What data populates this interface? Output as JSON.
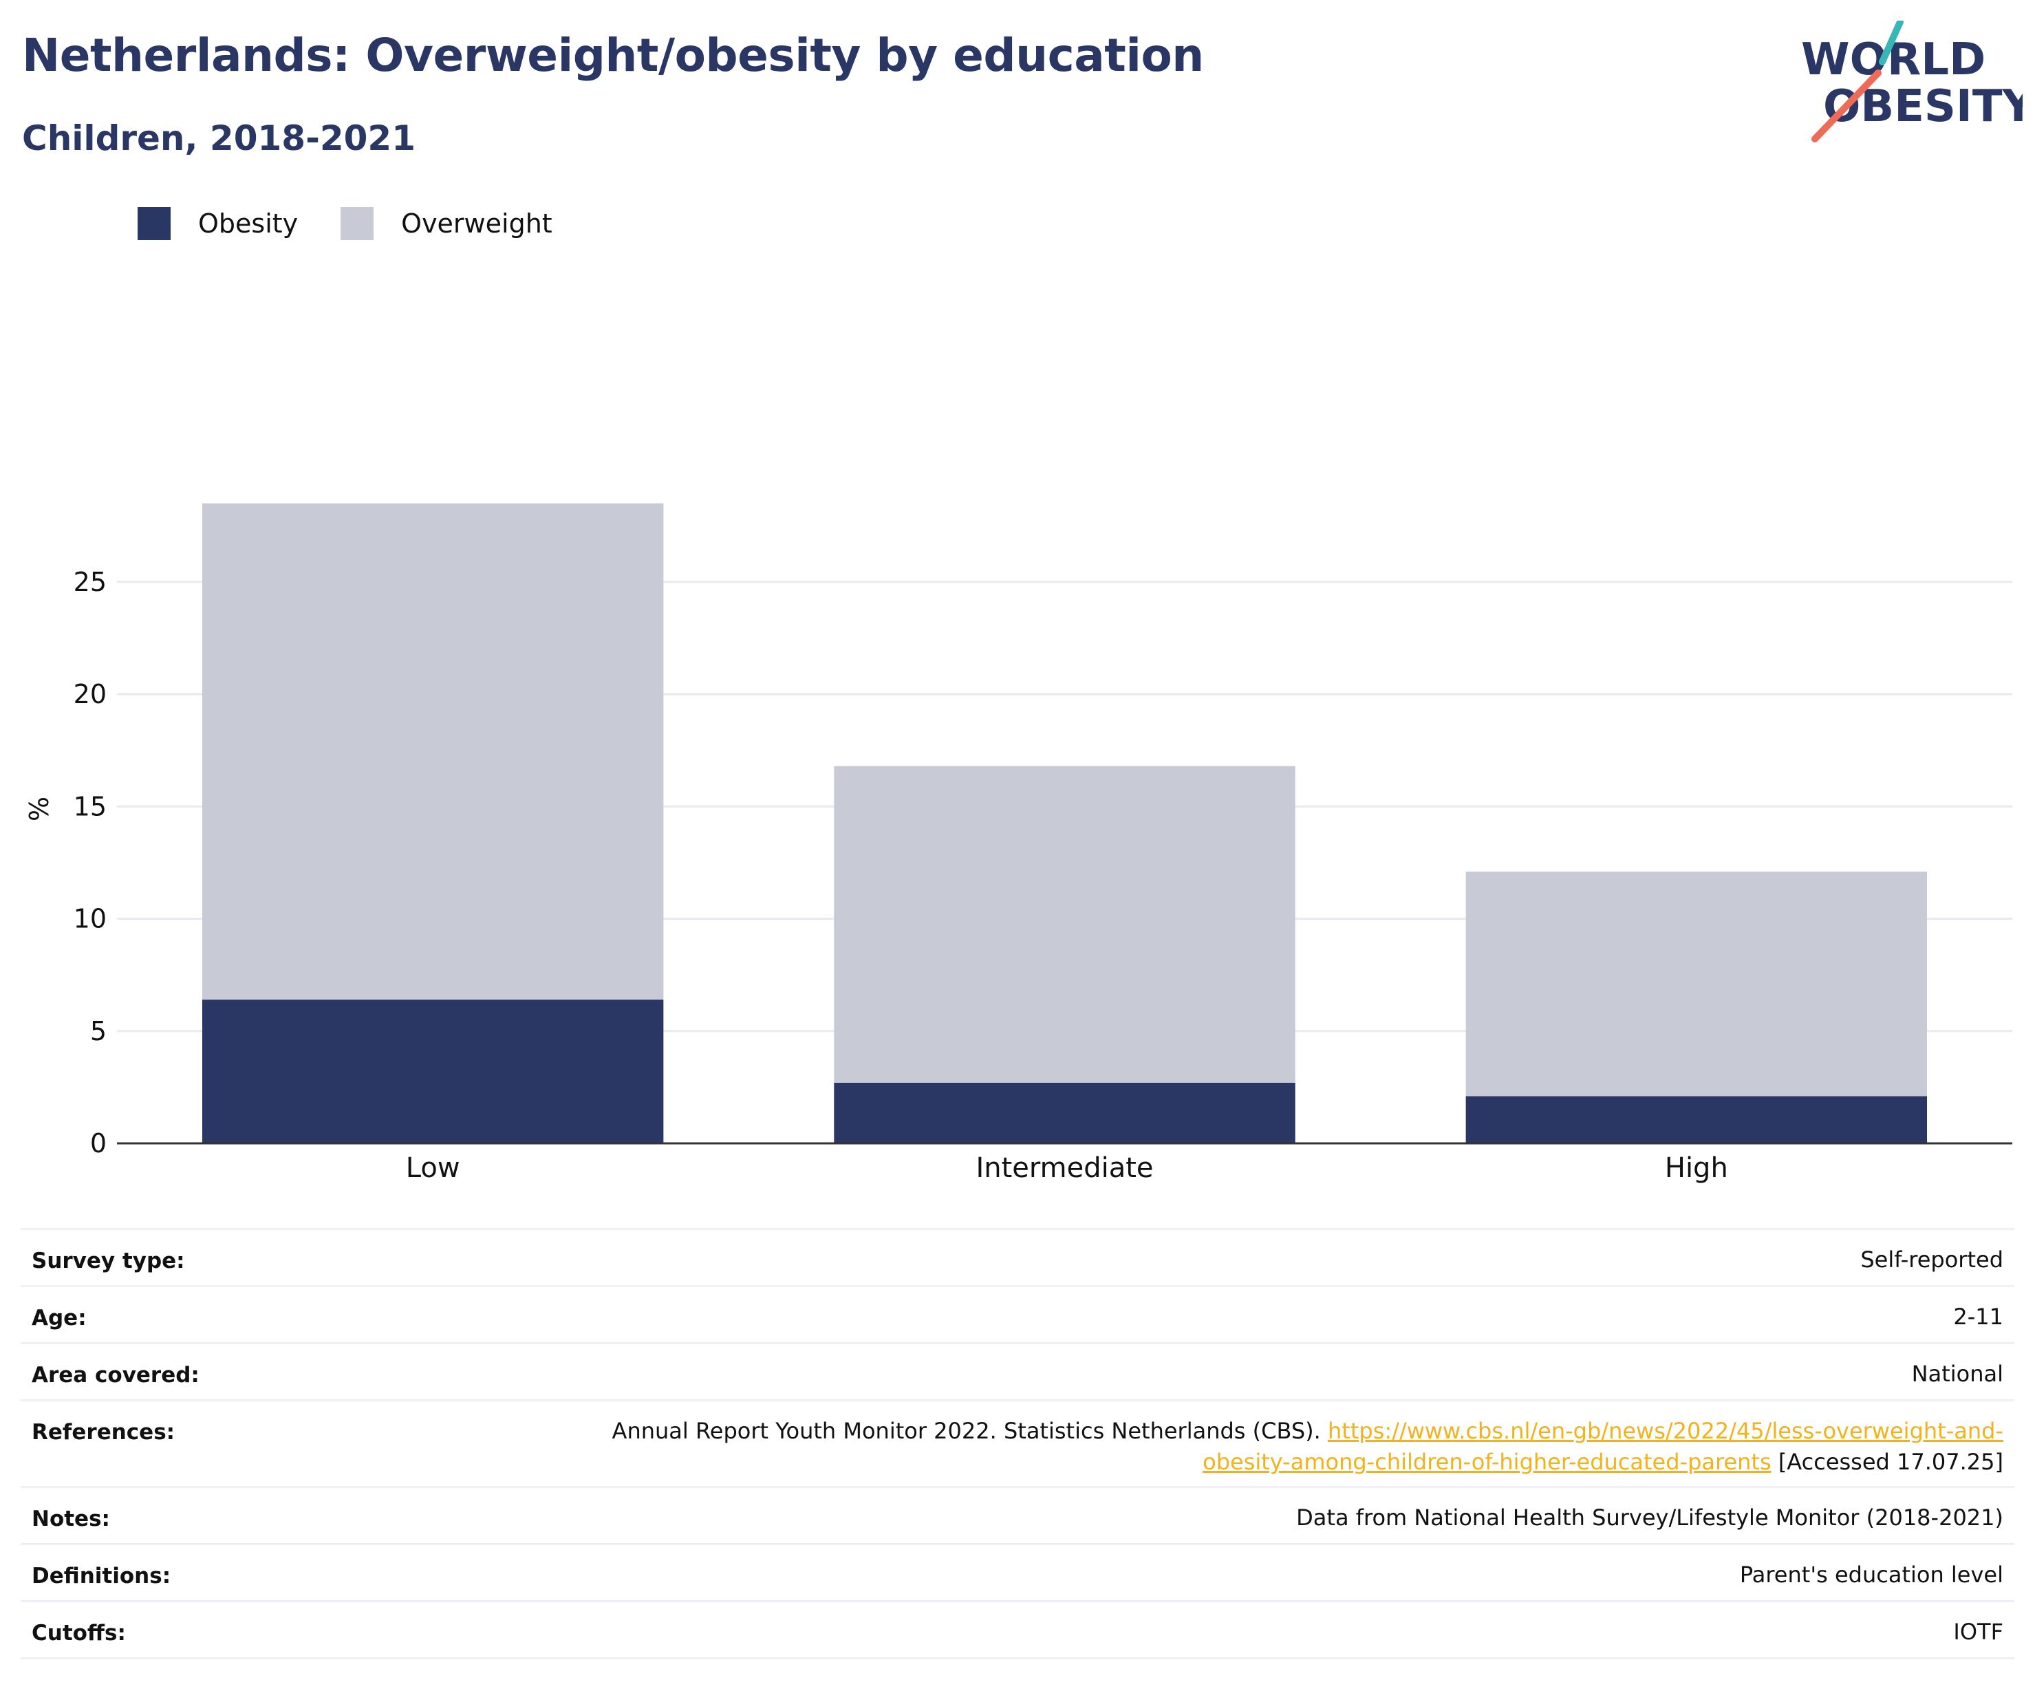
{
  "header": {
    "title": "Netherlands: Overweight/obesity by education",
    "subtitle": "Children, 2018-2021"
  },
  "logo": {
    "line1": "WORLD",
    "line2": "OBESITY"
  },
  "legend": [
    {
      "label": "Obesity",
      "color": "#2a3664"
    },
    {
      "label": "Overweight",
      "color": "#c8cbd6"
    }
  ],
  "chart_data": {
    "type": "bar",
    "stacked": true,
    "categories": [
      "Low",
      "Intermediate",
      "High"
    ],
    "series": [
      {
        "name": "Obesity",
        "values": [
          6.4,
          2.7,
          2.1
        ],
        "color": "#2a3664"
      },
      {
        "name": "Overweight",
        "values": [
          22.1,
          14.1,
          10.0
        ],
        "color": "#c8cbd6"
      }
    ],
    "ylabel": "%",
    "ylim": [
      0,
      31
    ],
    "yticks": [
      0,
      5,
      10,
      15,
      20,
      25
    ],
    "grid": true
  },
  "info": {
    "survey_type": {
      "label": "Survey type:",
      "value": "Self-reported"
    },
    "age": {
      "label": "Age:",
      "value": "2-11"
    },
    "area": {
      "label": "Area covered:",
      "value": "National"
    },
    "references": {
      "label": "References:",
      "text": "Annual Report Youth Monitor 2022. Statistics Netherlands (CBS).",
      "link_line1": "https://www.cbs.nl/en-gb/news/2022/45/less-overweight-and-",
      "link_line2": "obesity-among-children-of-higher-educated-parents",
      "accessed": "[Accessed 17.07.25]"
    },
    "notes": {
      "label": "Notes:",
      "value": "Data from National Health Survey/Lifestyle Monitor (2018-2021)"
    },
    "definitions": {
      "label": "Definitions:",
      "value": "Parent's education level"
    },
    "cutoffs": {
      "label": "Cutoffs:",
      "value": "IOTF"
    }
  }
}
